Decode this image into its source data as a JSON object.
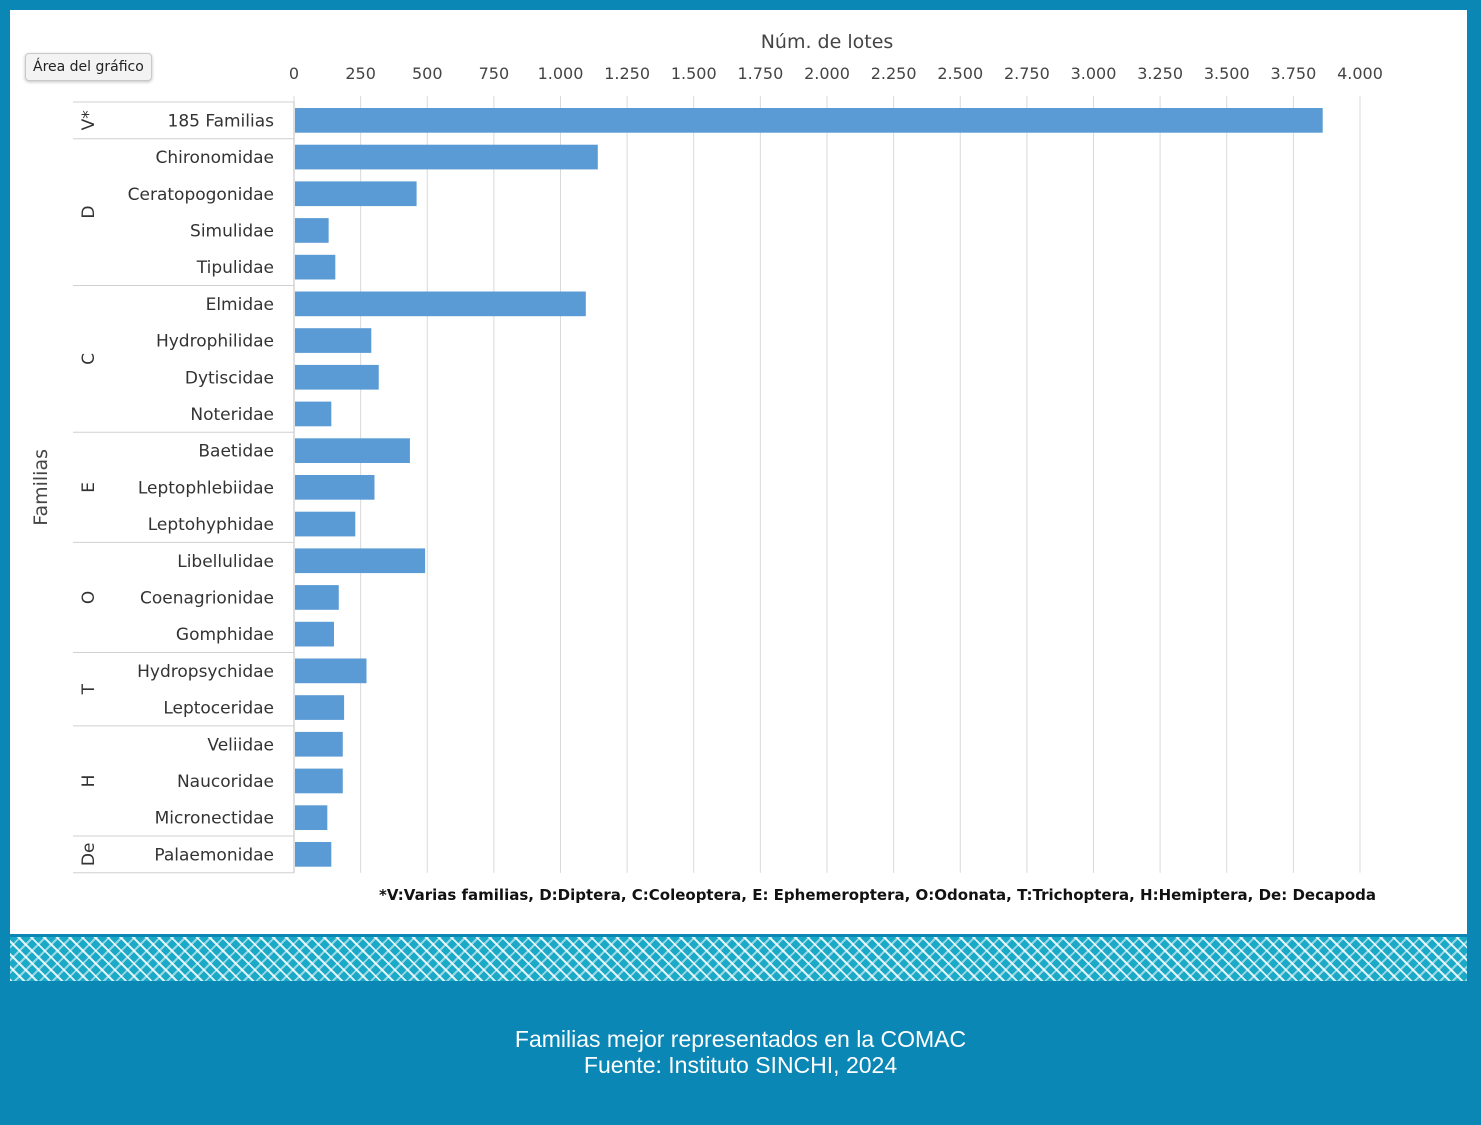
{
  "ui": {
    "area_tag": "Área del gráfico",
    "footnote": "*V:Varias familias, D:Diptera, C:Coleoptera, E: Ephemeroptera, O:Odonata, T:Trichoptera, H:Hemiptera, De: Decapoda",
    "caption_line1": "Familias mejor representados en la COMAC",
    "caption_line2": "Fuente: Instituto SINCHI, 2024"
  },
  "colors": {
    "bar": "#5b9bd5",
    "frame_bg": "#0b87b5",
    "pattern": "#1aa9c6"
  },
  "chart_data": {
    "type": "bar",
    "orientation": "horizontal",
    "xlabel": "Núm. de lotes",
    "ylabel": "Familias",
    "xlim": [
      0,
      4000
    ],
    "x_ticks": [
      0,
      250,
      500,
      750,
      1000,
      1250,
      1500,
      1750,
      2000,
      2250,
      2500,
      2750,
      3000,
      3250,
      3500,
      3750,
      4000
    ],
    "x_tick_labels": [
      "0",
      "250",
      "500",
      "750",
      "1.000",
      "1.250",
      "1.500",
      "1.750",
      "2.000",
      "2.250",
      "2.500",
      "2.750",
      "3.000",
      "3.250",
      "3.500",
      "3.750",
      "4.000"
    ],
    "grid": "vertical",
    "axis_position": "top",
    "groups": [
      {
        "label": "V*",
        "categories": [
          "185 Familias"
        ],
        "values": [
          3860
        ]
      },
      {
        "label": "D",
        "categories": [
          "Chironomidae",
          "Ceratopogonidae",
          "Simulidae",
          "Tipulidae"
        ],
        "values": [
          1140,
          460,
          130,
          155
        ]
      },
      {
        "label": "C",
        "categories": [
          "Elmidae",
          "Hydrophilidae",
          "Dytiscidae",
          "Noteridae"
        ],
        "values": [
          1095,
          290,
          318,
          140
        ]
      },
      {
        "label": "E",
        "categories": [
          "Baetidae",
          "Leptophlebiidae",
          "Leptohyphidae"
        ],
        "values": [
          435,
          302,
          230
        ]
      },
      {
        "label": "O",
        "categories": [
          "Libellulidae",
          "Coenagrionidae",
          "Gomphidae"
        ],
        "values": [
          492,
          168,
          150
        ]
      },
      {
        "label": "T",
        "categories": [
          "Hydropsychidae",
          "Leptoceridae"
        ],
        "values": [
          272,
          188
        ]
      },
      {
        "label": "H",
        "categories": [
          "Veliidae",
          "Naucoridae",
          "Micronectidae"
        ],
        "values": [
          183,
          183,
          125
        ]
      },
      {
        "label": "De",
        "categories": [
          "Palaemonidae"
        ],
        "values": [
          140
        ]
      }
    ]
  }
}
